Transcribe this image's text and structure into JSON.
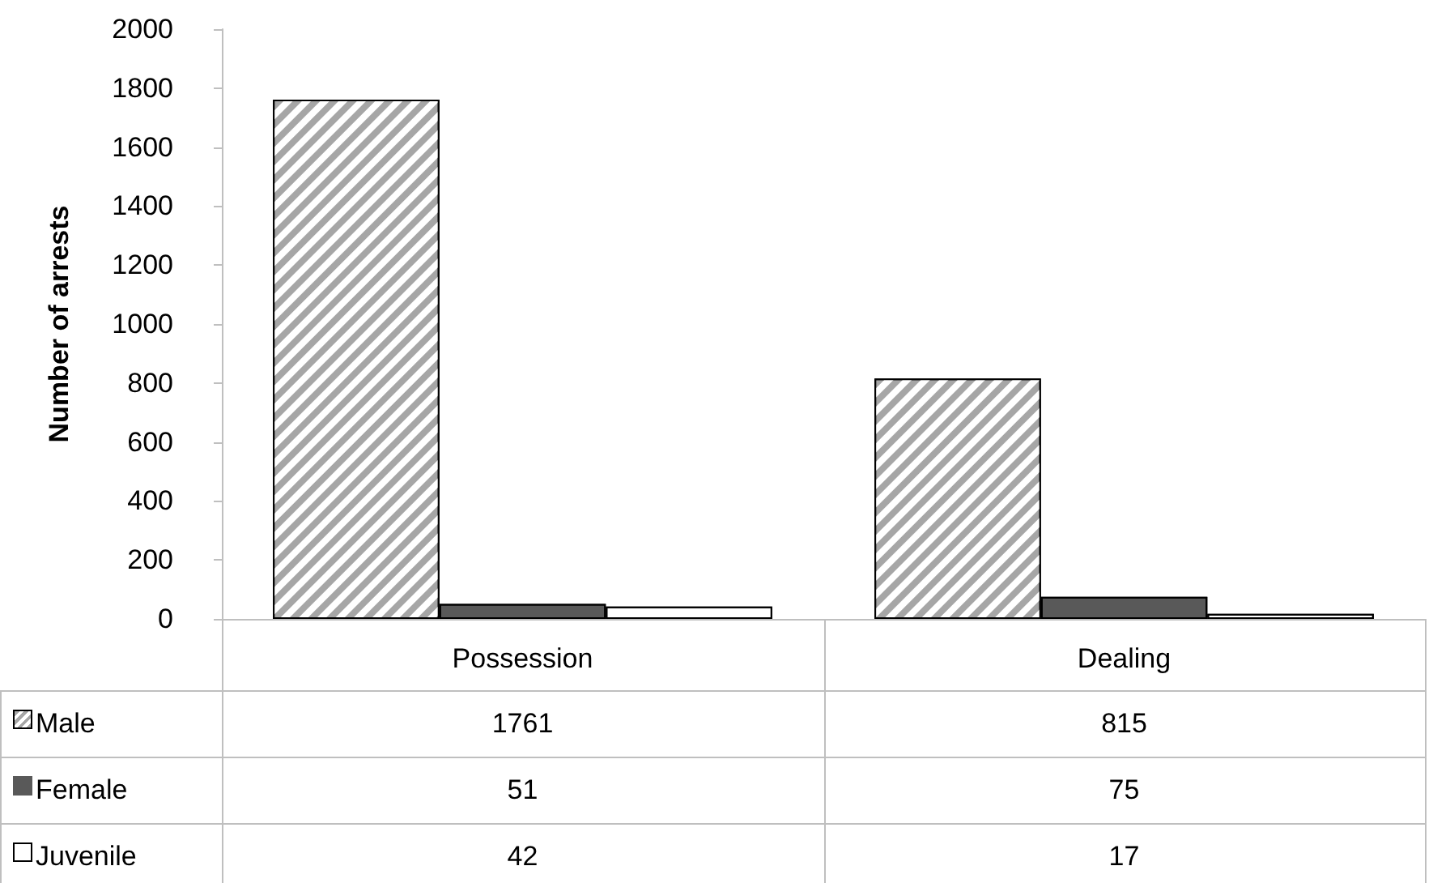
{
  "chart_data": {
    "type": "bar",
    "ylabel": "Number of arrests",
    "categories": [
      "Possession",
      "Dealing"
    ],
    "series": [
      {
        "name": "Male",
        "color": "#a6a6a6",
        "values": [
          1761,
          815
        ]
      },
      {
        "name": "Female",
        "color": "#595959",
        "values": [
          51,
          75
        ]
      },
      {
        "name": "Juvenile",
        "color": "#ffffff",
        "values": [
          42,
          17
        ]
      }
    ],
    "ylim": [
      0,
      2000
    ],
    "yticks": [
      0,
      200,
      400,
      600,
      800,
      1000,
      1200,
      1400,
      1600,
      1800,
      2000
    ],
    "grid": false,
    "legend": "bottom",
    "data_labels": true
  }
}
